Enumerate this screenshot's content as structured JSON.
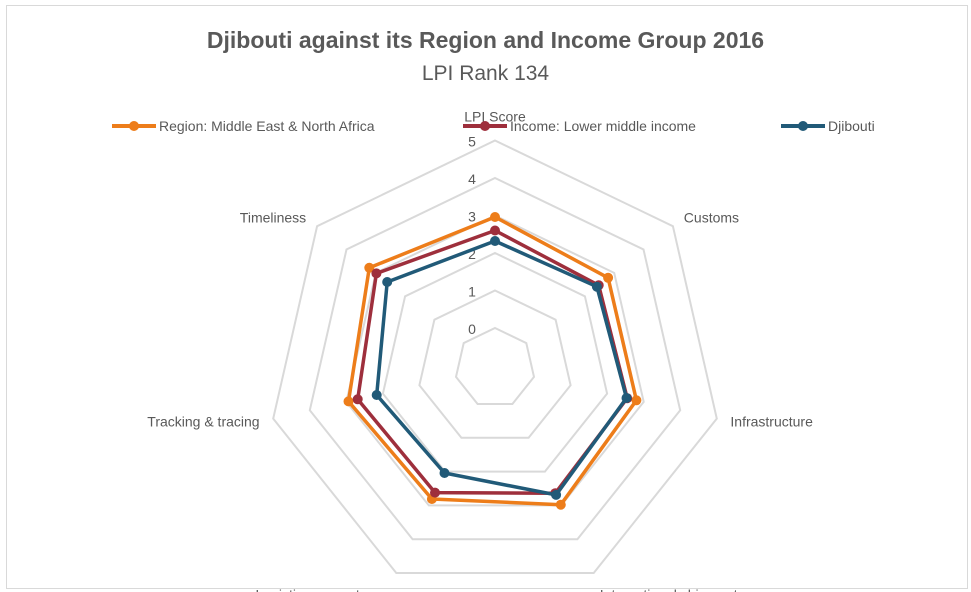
{
  "chart_data": {
    "type": "radar",
    "title": "Djibouti against its Region and Income Group 2016",
    "subtitle": "LPI Rank 134",
    "categories": [
      "LPI Score",
      "Customs",
      "Infrastructure",
      "International shipments",
      "Logistics competence",
      "Tracking & tracing",
      "Timeliness"
    ],
    "rlim": [
      0,
      5
    ],
    "ticks": [
      "0",
      "1",
      "2",
      "3",
      "4",
      "5"
    ],
    "grid": true,
    "legend_position": "top",
    "series": [
      {
        "name": "Region: Middle East & North Africa",
        "color": "#ED7D1A",
        "values": [
          2.96,
          2.79,
          2.8,
          2.98,
          2.81,
          2.94,
          3.22
        ]
      },
      {
        "name": "Income: Lower middle income",
        "color": "#9E2F3C",
        "values": [
          2.6,
          2.47,
          2.55,
          2.64,
          2.62,
          2.69,
          2.98
        ]
      },
      {
        "name": "Djibouti",
        "color": "#215A78",
        "values": [
          2.32,
          2.41,
          2.53,
          2.69,
          2.04,
          2.17,
          2.61
        ]
      }
    ]
  }
}
